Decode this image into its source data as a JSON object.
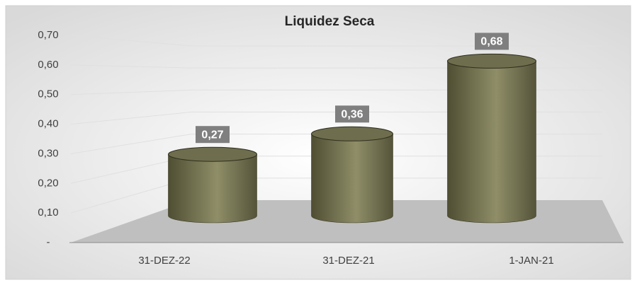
{
  "chart_data": {
    "type": "bar",
    "title": "Liquidez Seca",
    "categories": [
      "31-DEZ-22",
      "31-DEZ-21",
      "1-JAN-21"
    ],
    "values": [
      0.27,
      0.36,
      0.68
    ],
    "value_labels": [
      "0,27",
      "0,36",
      "0,68"
    ],
    "color": "#6b6a4a",
    "ylim": [
      0,
      0.7
    ],
    "yticks": [
      {
        "value": 0,
        "label": "-"
      },
      {
        "value": 0.1,
        "label": "0,10"
      },
      {
        "value": 0.2,
        "label": "0,20"
      },
      {
        "value": 0.3,
        "label": "0,30"
      },
      {
        "value": 0.4,
        "label": "0,40"
      },
      {
        "value": 0.5,
        "label": "0,50"
      },
      {
        "value": 0.6,
        "label": "0,60"
      },
      {
        "value": 0.7,
        "label": "0,70"
      }
    ],
    "grid": true
  }
}
